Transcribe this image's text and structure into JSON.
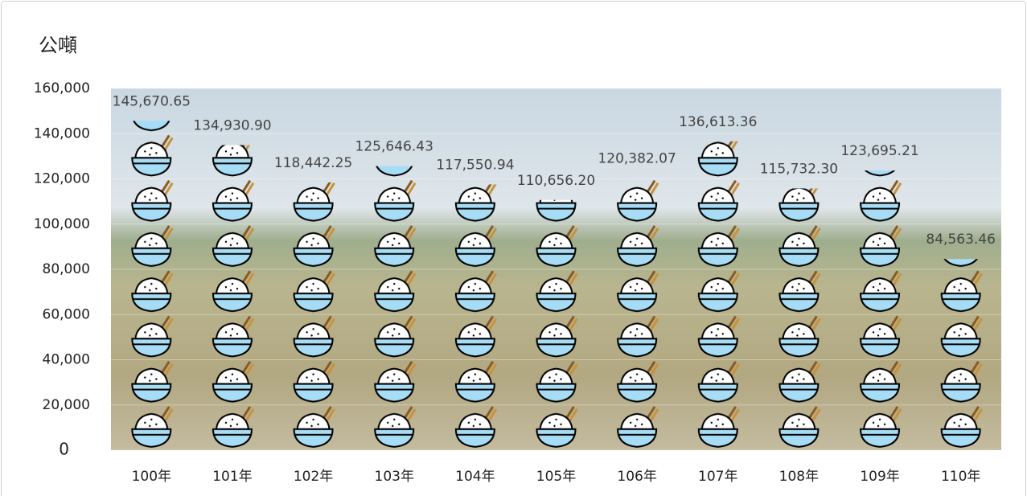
{
  "chart_data": {
    "type": "bar",
    "title": "公噸",
    "categories": [
      "100年",
      "101年",
      "102年",
      "103年",
      "104年",
      "105年",
      "106年",
      "107年",
      "108年",
      "109年",
      "110年"
    ],
    "values": [
      145670.65,
      134930.9,
      118442.25,
      125646.43,
      117550.94,
      110656.2,
      120382.07,
      136613.36,
      115732.3,
      123695.21,
      84563.46
    ],
    "value_labels": [
      "145,670.65",
      "134,930.90",
      "118,442.25",
      "125,646.43",
      "117,550.94",
      "110,656.20",
      "120,382.07",
      "136,613.36",
      "115,732.30",
      "123,695.21",
      "84,563.46"
    ],
    "color": "#a6dcf5",
    "ylim": [
      0,
      160000
    ],
    "yticks": [
      0,
      {
        "value": 20000,
        "label": "20,000"
      },
      {
        "value": 40000,
        "label": "40,000"
      },
      {
        "value": 60000,
        "label": "60,000"
      },
      {
        "value": 80000,
        "label": "80,000"
      },
      {
        "value": 100000,
        "label": "100,000"
      },
      {
        "value": 120000,
        "label": "120,000"
      },
      {
        "value": 140000,
        "label": "140,000"
      },
      {
        "value": 160000,
        "label": "160,000"
      }
    ],
    "grid": true
  }
}
